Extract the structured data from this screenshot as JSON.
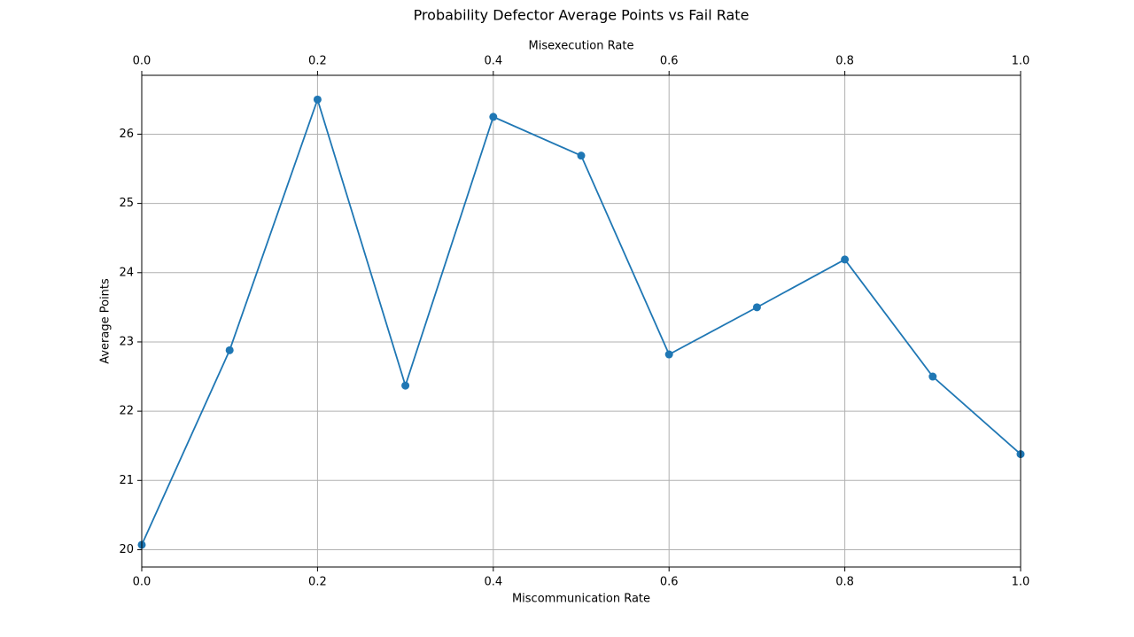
{
  "chart_data": {
    "type": "line",
    "title": "Probability Defector Average Points vs Fail Rate",
    "xlabel": "Miscommunication Rate",
    "x2label": "Misexecution Rate",
    "ylabel": "Average Points",
    "xlim": [
      0.0,
      1.0
    ],
    "ylim": [
      19.75,
      26.85
    ],
    "grid": true,
    "xticks": [
      "0.0",
      "0.2",
      "0.4",
      "0.6",
      "0.8",
      "1.0"
    ],
    "x2ticks": [
      "0.0",
      "0.2",
      "0.4",
      "0.6",
      "0.8",
      "1.0"
    ],
    "yticks": [
      "20",
      "21",
      "22",
      "23",
      "24",
      "25",
      "26"
    ],
    "series": [
      {
        "x": [
          0.0,
          0.1,
          0.2,
          0.3,
          0.4,
          0.5,
          0.6,
          0.7,
          0.8,
          0.9,
          1.0
        ],
        "y": [
          20.07,
          22.88,
          26.5,
          22.37,
          26.25,
          25.69,
          22.82,
          23.5,
          24.19,
          22.5,
          21.38
        ]
      }
    ],
    "colors": {
      "line": "#1f77b4",
      "grid": "#b0b0b0",
      "axes": "#000000"
    }
  }
}
